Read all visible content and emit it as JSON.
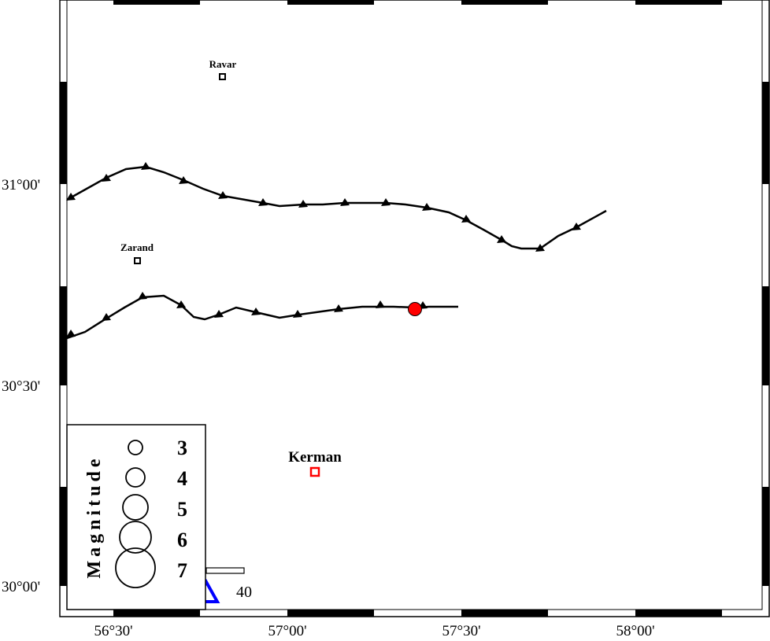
{
  "map": {
    "axis": {
      "lon_labels": [
        "56°30'",
        "57°00'",
        "57°30'",
        "58°00'"
      ],
      "lat_labels": [
        "31°00'",
        "30°30'",
        "30°00'"
      ]
    },
    "cities": [
      {
        "name": "Ravar",
        "style": "small",
        "marker_color": "#000000"
      },
      {
        "name": "Zarand",
        "style": "small",
        "marker_color": "#000000"
      },
      {
        "name": "Kerman",
        "style": "big",
        "marker_color": "#ff0000"
      }
    ],
    "epicenter": {
      "color": "#ff0000"
    },
    "station_color": "#0000ff",
    "legend": {
      "title": "Magnitude",
      "magnitudes": [
        "3",
        "4",
        "5",
        "6",
        "7"
      ]
    },
    "scale": {
      "label": "40"
    }
  }
}
